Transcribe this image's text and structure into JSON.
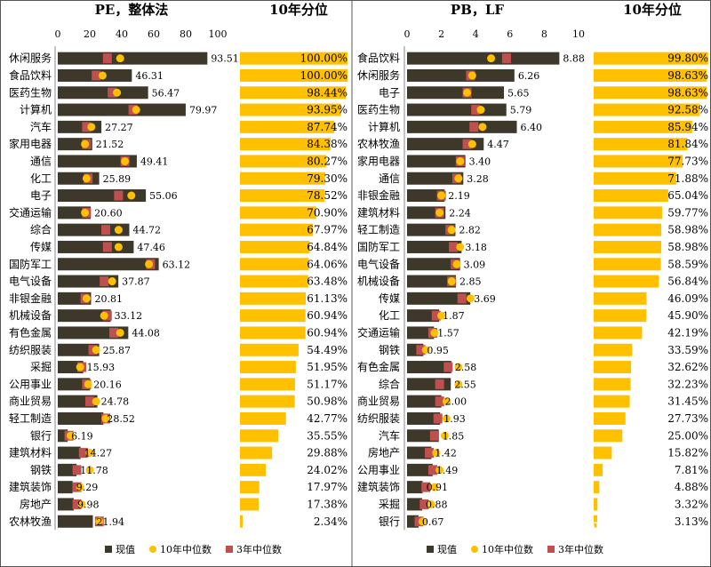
{
  "colors": {
    "current": "#3d3829",
    "median10": "#ffc000",
    "median3": "#c0504d",
    "bar": "#ffc000",
    "border": "#555555"
  },
  "left": {
    "title": "PE，整体法",
    "percentile_title": "10年分位",
    "legend": [
      "现值",
      "10年中位数",
      "3年中位数"
    ]
  },
  "right": {
    "title": "PB，LF",
    "percentile_title": "10年分位",
    "legend": [
      "现值",
      "10年中位数",
      "3年中位数"
    ]
  },
  "watermark": "知乎 @辟雍",
  "chart_data": [
    {
      "type": "bar",
      "title": "PE，整体法",
      "orientation": "horizontal",
      "xlim": [
        0,
        100
      ],
      "ticks": [
        0,
        20,
        40,
        60,
        80,
        100
      ],
      "categories": [
        "休闲服务",
        "食品饮料",
        "医药生物",
        "计算机",
        "汽车",
        "家用电器",
        "通信",
        "化工",
        "电子",
        "交通运输",
        "综合",
        "传媒",
        "国防军工",
        "电气设备",
        "非银金融",
        "机械设备",
        "有色金属",
        "纺织服装",
        "采掘",
        "公用事业",
        "商业贸易",
        "轻工制造",
        "银行",
        "建筑材料",
        "钢铁",
        "建筑装饰",
        "房地产",
        "农林牧渔"
      ],
      "series": [
        {
          "name": "现值",
          "values": [
            93.51,
            46.31,
            56.47,
            79.97,
            27.27,
            21.52,
            49.41,
            25.89,
            55.06,
            20.6,
            44.72,
            47.46,
            63.12,
            37.87,
            20.81,
            33.12,
            44.08,
            25.87,
            15.93,
            20.16,
            24.78,
            28.52,
            6.19,
            14.27,
            11.78,
            9.29,
            9.98,
            21.94
          ]
        },
        {
          "name": "10年中位数",
          "values": [
            39,
            28,
            37,
            49,
            21,
            17,
            42,
            18,
            46,
            17,
            38,
            38,
            57,
            34,
            18,
            29,
            39,
            24,
            14,
            19,
            24,
            30,
            8,
            20,
            20,
            14,
            15,
            26
          ]
        },
        {
          "name": "3年中位数",
          "values": [
            31,
            24,
            34,
            47,
            18,
            18,
            42,
            19,
            38,
            18,
            30,
            31,
            58,
            29,
            17,
            31,
            35,
            22,
            15,
            18,
            20,
            30,
            7,
            16,
            12,
            12,
            12,
            26
          ]
        }
      ],
      "percentile": {
        "title": "10年分位",
        "labels": [
          "100.00%",
          "100.00%",
          "98.44%",
          "93.95%",
          "87.74%",
          "84.38%",
          "80.27%",
          "79.30%",
          "78.52%",
          "70.90%",
          "67.97%",
          "64.84%",
          "64.06%",
          "63.48%",
          "61.13%",
          "60.94%",
          "60.94%",
          "54.49%",
          "51.95%",
          "51.17%",
          "50.98%",
          "42.77%",
          "35.55%",
          "29.88%",
          "24.02%",
          "17.97%",
          "17.38%",
          "2.34%"
        ],
        "values": [
          100.0,
          100.0,
          98.44,
          93.95,
          87.74,
          84.38,
          80.27,
          79.3,
          78.52,
          70.9,
          67.97,
          64.84,
          64.06,
          63.48,
          61.13,
          60.94,
          60.94,
          54.49,
          51.95,
          51.17,
          50.98,
          42.77,
          35.55,
          29.88,
          24.02,
          17.97,
          17.38,
          2.34
        ]
      },
      "legend": [
        "现值",
        "10年中位数",
        "3年中位数"
      ]
    },
    {
      "type": "bar",
      "title": "PB，LF",
      "orientation": "horizontal",
      "xlim": [
        0,
        10
      ],
      "ticks": [
        0,
        2,
        4,
        6,
        8,
        10
      ],
      "categories": [
        "食品饮料",
        "休闲服务",
        "电子",
        "医药生物",
        "计算机",
        "农林牧渔",
        "家用电器",
        "通信",
        "非银金融",
        "建筑材料",
        "轻工制造",
        "国防军工",
        "电气设备",
        "机械设备",
        "传媒",
        "化工",
        "交通运输",
        "钢铁",
        "有色金属",
        "综合",
        "商业贸易",
        "纺织服装",
        "汽车",
        "房地产",
        "公用事业",
        "建筑装饰",
        "采掘",
        "银行"
      ],
      "series": [
        {
          "name": "现值",
          "values": [
            8.88,
            6.26,
            5.65,
            5.79,
            6.4,
            4.47,
            3.4,
            3.28,
            2.19,
            2.24,
            2.82,
            3.18,
            3.09,
            2.85,
            3.69,
            1.87,
            1.57,
            0.95,
            2.58,
            2.55,
            2.0,
            1.93,
            1.85,
            1.42,
            1.49,
            0.91,
            0.88,
            0.67
          ]
        },
        {
          "name": "10年中位数",
          "values": [
            4.9,
            3.8,
            3.5,
            4.3,
            4.4,
            3.8,
            3.1,
            3.0,
            2.0,
            1.9,
            2.6,
            3.1,
            2.9,
            2.6,
            3.7,
            2.0,
            1.6,
            1.1,
            3.0,
            3.0,
            2.3,
            2.3,
            2.2,
            1.7,
            1.9,
            1.6,
            1.4,
            0.9
          ]
        },
        {
          "name": "3年中位数",
          "values": [
            5.8,
            3.7,
            3.5,
            4.0,
            3.9,
            3.5,
            3.1,
            2.9,
            2.0,
            1.9,
            2.5,
            2.7,
            2.8,
            2.6,
            3.2,
            1.7,
            1.5,
            0.8,
            2.4,
            1.9,
            1.9,
            1.8,
            1.6,
            1.3,
            1.5,
            1.1,
            1.0,
            0.7
          ]
        }
      ],
      "percentile": {
        "title": "10年分位",
        "labels": [
          "99.80%",
          "98.63%",
          "98.63%",
          "92.58%",
          "85.94%",
          "81.84%",
          "77.73%",
          "71.88%",
          "65.04%",
          "59.77%",
          "58.98%",
          "58.98%",
          "58.59%",
          "56.84%",
          "46.09%",
          "45.90%",
          "42.19%",
          "33.59%",
          "32.62%",
          "32.23%",
          "31.45%",
          "27.73%",
          "25.00%",
          "15.82%",
          "7.81%",
          "4.88%",
          "3.32%",
          "3.13%"
        ],
        "values": [
          99.8,
          98.63,
          98.63,
          92.58,
          85.94,
          81.84,
          77.73,
          71.88,
          65.04,
          59.77,
          58.98,
          58.98,
          58.59,
          56.84,
          46.09,
          45.9,
          42.19,
          33.59,
          32.62,
          32.23,
          31.45,
          27.73,
          25.0,
          15.82,
          7.81,
          4.88,
          3.32,
          3.13
        ]
      },
      "legend": [
        "现值",
        "10年中位数",
        "3年中位数"
      ]
    }
  ]
}
